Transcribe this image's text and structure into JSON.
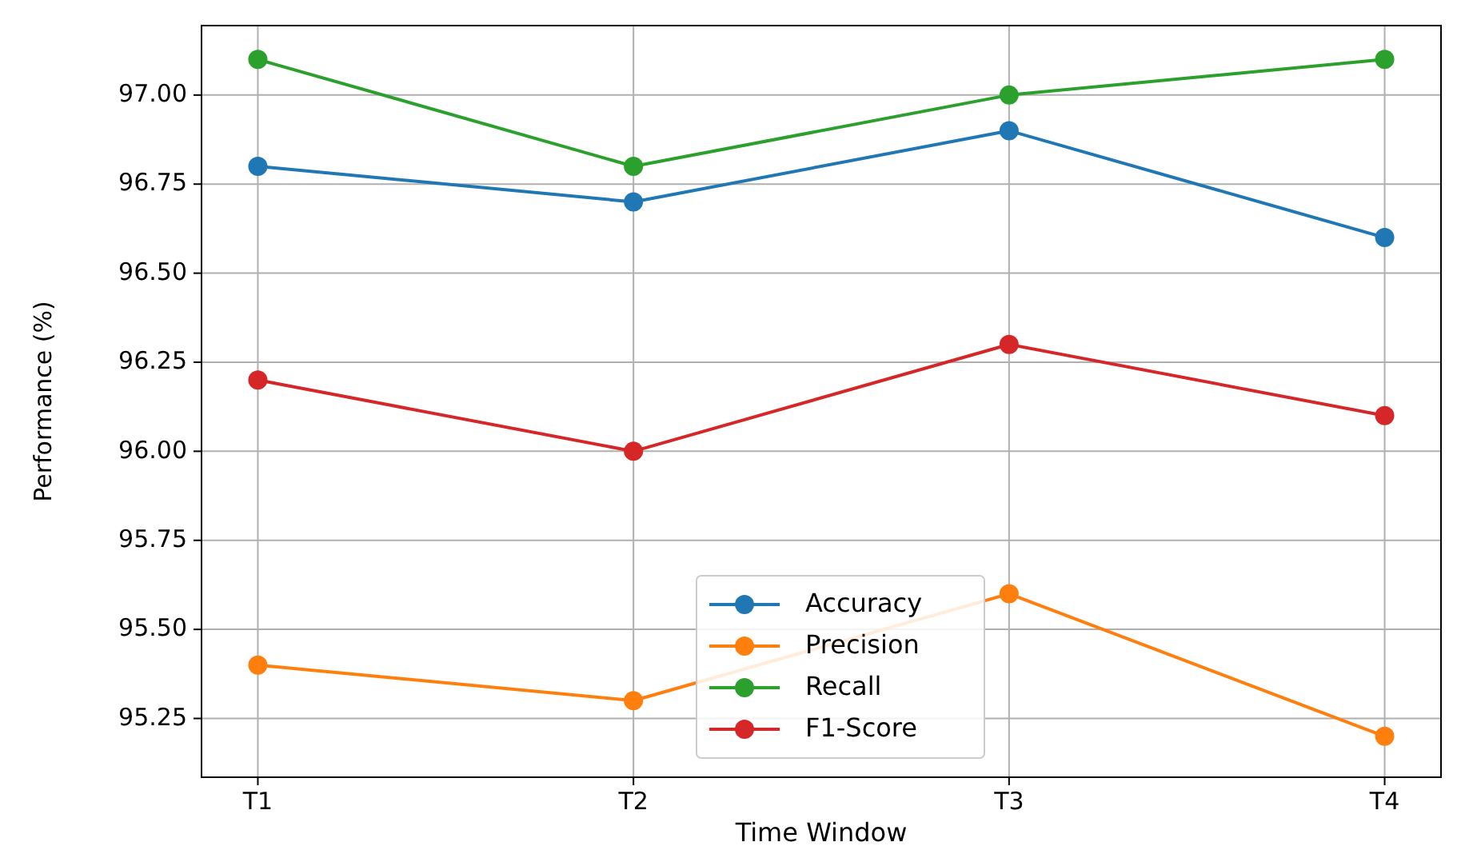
{
  "chart_data": {
    "type": "line",
    "xlabel": "Time Window",
    "ylabel": "Performance (%)",
    "categories": [
      "T1",
      "T2",
      "T3",
      "T4"
    ],
    "series": [
      {
        "name": "Accuracy",
        "color": "#1f77b4",
        "values": [
          96.8,
          96.7,
          96.9,
          96.6
        ]
      },
      {
        "name": "Precision",
        "color": "#ff7f0e",
        "values": [
          95.4,
          95.3,
          95.6,
          95.2
        ]
      },
      {
        "name": "Recall",
        "color": "#2ca02c",
        "values": [
          97.1,
          96.8,
          97.0,
          97.1
        ]
      },
      {
        "name": "F1-Score",
        "color": "#d62728",
        "values": [
          96.2,
          96.0,
          96.3,
          96.1
        ]
      }
    ],
    "ylim": [
      95.085,
      97.195
    ],
    "yticks": [
      {
        "value": 95.25,
        "label": "95.25"
      },
      {
        "value": 95.5,
        "label": "95.50"
      },
      {
        "value": 95.75,
        "label": "95.75"
      },
      {
        "value": 96,
        "label": "96.00"
      },
      {
        "value": 96.25,
        "label": "96.25"
      },
      {
        "value": 96.5,
        "label": "96.50"
      },
      {
        "value": 96.75,
        "label": "96.75"
      },
      {
        "value": 97,
        "label": "97.00"
      }
    ],
    "grid": true,
    "legend": "bottom",
    "marker": "circle",
    "line_style": "solid"
  }
}
